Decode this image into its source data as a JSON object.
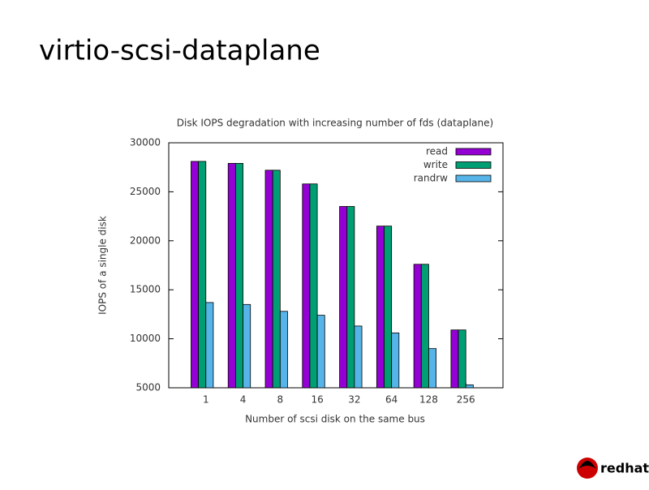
{
  "slide_title": "virtio-scsi-dataplane",
  "logo": "redhat.",
  "chart_data": {
    "type": "bar",
    "title": "Disk IOPS degradation with increasing number of fds (dataplane)",
    "x_label": "Number of scsi disk on the same bus",
    "y_label": "IOPS of a single disk",
    "categories": [
      "1",
      "4",
      "8",
      "16",
      "32",
      "64",
      "128",
      "256"
    ],
    "series": [
      {
        "name": "read",
        "color": "#9400d3",
        "values": [
          28100,
          27900,
          27200,
          25800,
          23500,
          21500,
          17600,
          10900
        ]
      },
      {
        "name": "write",
        "color": "#009e73",
        "values": [
          28100,
          27900,
          27200,
          25800,
          23500,
          21500,
          17600,
          10900
        ]
      },
      {
        "name": "randrw",
        "color": "#56b4e9",
        "values": [
          13700,
          13500,
          12800,
          12400,
          11300,
          10600,
          9000,
          5300
        ]
      }
    ],
    "ylim": [
      5000,
      30000
    ],
    "yticks": [
      5000,
      10000,
      15000,
      20000,
      25000,
      30000
    ],
    "legend": "top-right"
  }
}
